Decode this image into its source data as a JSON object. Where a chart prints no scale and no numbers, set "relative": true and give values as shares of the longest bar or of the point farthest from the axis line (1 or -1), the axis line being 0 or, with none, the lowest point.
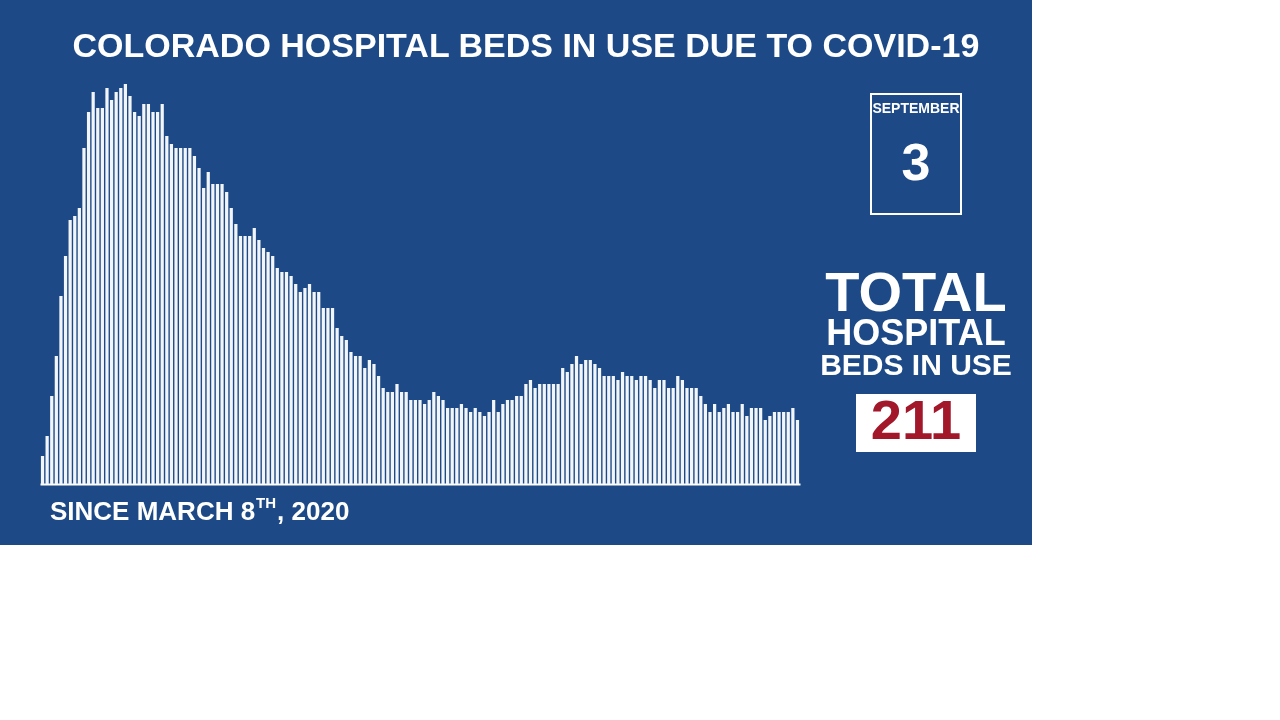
{
  "chart_data": {
    "type": "bar",
    "title": "COLORADO HOSPITAL BEDS IN USE DUE TO COVID-19",
    "relative": true,
    "tick_labels": false,
    "color": "#f2f6fb",
    "categories": [
      null,
      null,
      null,
      null,
      null,
      null,
      null,
      null,
      null,
      null,
      null,
      null,
      null,
      null,
      null,
      null,
      null,
      null,
      null,
      null,
      null,
      null,
      null,
      null,
      null,
      null,
      null,
      null,
      null,
      null,
      null,
      null,
      null,
      null,
      null,
      null,
      null,
      null,
      null,
      null,
      null,
      null,
      null,
      null,
      null,
      null,
      null,
      null,
      null,
      null,
      null,
      null,
      null,
      null,
      null,
      null,
      null,
      null,
      null,
      null,
      null,
      null,
      null,
      null,
      null,
      null,
      null,
      null,
      null,
      null,
      null,
      null,
      null,
      null,
      null,
      null,
      null,
      null,
      null,
      null,
      null,
      null,
      null,
      null,
      null,
      null,
      null,
      null,
      null,
      null,
      null,
      null,
      null,
      null,
      null,
      null,
      null,
      null,
      null,
      null,
      null,
      null,
      null,
      null,
      null,
      null,
      null,
      null,
      null,
      null,
      null,
      null,
      null,
      null,
      null,
      null,
      null,
      null,
      null,
      null,
      null,
      null,
      null,
      null,
      null,
      null,
      null,
      null,
      null,
      null,
      null,
      null,
      null,
      null,
      null,
      null,
      null,
      null,
      null,
      null,
      null,
      null,
      null,
      null,
      null,
      null,
      null,
      null,
      null,
      null,
      null,
      null,
      null,
      null,
      null,
      null,
      null,
      null,
      null,
      null,
      null,
      null,
      null,
      null,
      null
    ],
    "values": [
      0.07,
      0.12,
      0.22,
      0.32,
      0.47,
      0.57,
      0.66,
      0.67,
      0.69,
      0.84,
      0.93,
      0.98,
      0.94,
      0.94,
      0.99,
      0.96,
      0.98,
      0.99,
      1,
      0.97,
      0.93,
      0.92,
      0.95,
      0.95,
      0.93,
      0.93,
      0.95,
      0.87,
      0.85,
      0.84,
      0.84,
      0.84,
      0.84,
      0.82,
      0.79,
      0.74,
      0.78,
      0.75,
      0.75,
      0.75,
      0.73,
      0.69,
      0.65,
      0.62,
      0.62,
      0.62,
      0.64,
      0.61,
      0.59,
      0.58,
      0.57,
      0.54,
      0.53,
      0.53,
      0.52,
      0.5,
      0.48,
      0.49,
      0.5,
      0.48,
      0.48,
      0.44,
      0.44,
      0.44,
      0.39,
      0.37,
      0.36,
      0.33,
      0.32,
      0.32,
      0.29,
      0.31,
      0.3,
      0.27,
      0.24,
      0.23,
      0.23,
      0.25,
      0.23,
      0.23,
      0.21,
      0.21,
      0.21,
      0.2,
      0.21,
      0.23,
      0.22,
      0.21,
      0.19,
      0.19,
      0.19,
      0.2,
      0.19,
      0.18,
      0.19,
      0.18,
      0.17,
      0.18,
      0.21,
      0.18,
      0.2,
      0.21,
      0.21,
      0.22,
      0.22,
      0.25,
      0.26,
      0.24,
      0.25,
      0.25,
      0.25,
      0.25,
      0.25,
      0.29,
      0.28,
      0.3,
      0.32,
      0.3,
      0.31,
      0.31,
      0.3,
      0.29,
      0.27,
      0.27,
      0.27,
      0.26,
      0.28,
      0.27,
      0.27,
      0.26,
      0.27,
      0.27,
      0.26,
      0.24,
      0.26,
      0.26,
      0.24,
      0.24,
      0.27,
      0.26,
      0.24,
      0.24,
      0.24,
      0.22,
      0.2,
      0.18,
      0.2,
      0.18,
      0.19,
      0.2,
      0.18,
      0.18,
      0.2,
      0.17,
      0.19,
      0.19,
      0.19,
      0.16,
      0.17,
      0.18,
      0.18,
      0.18,
      0.18,
      0.19,
      0.16
    ],
    "annotations": [
      "SEPTEMBER",
      "3",
      "TOTAL",
      "HOSPITAL",
      "BEDS IN USE",
      "211",
      "SINCE MARCH 8$^{TH}$, 2020"
    ]
  }
}
